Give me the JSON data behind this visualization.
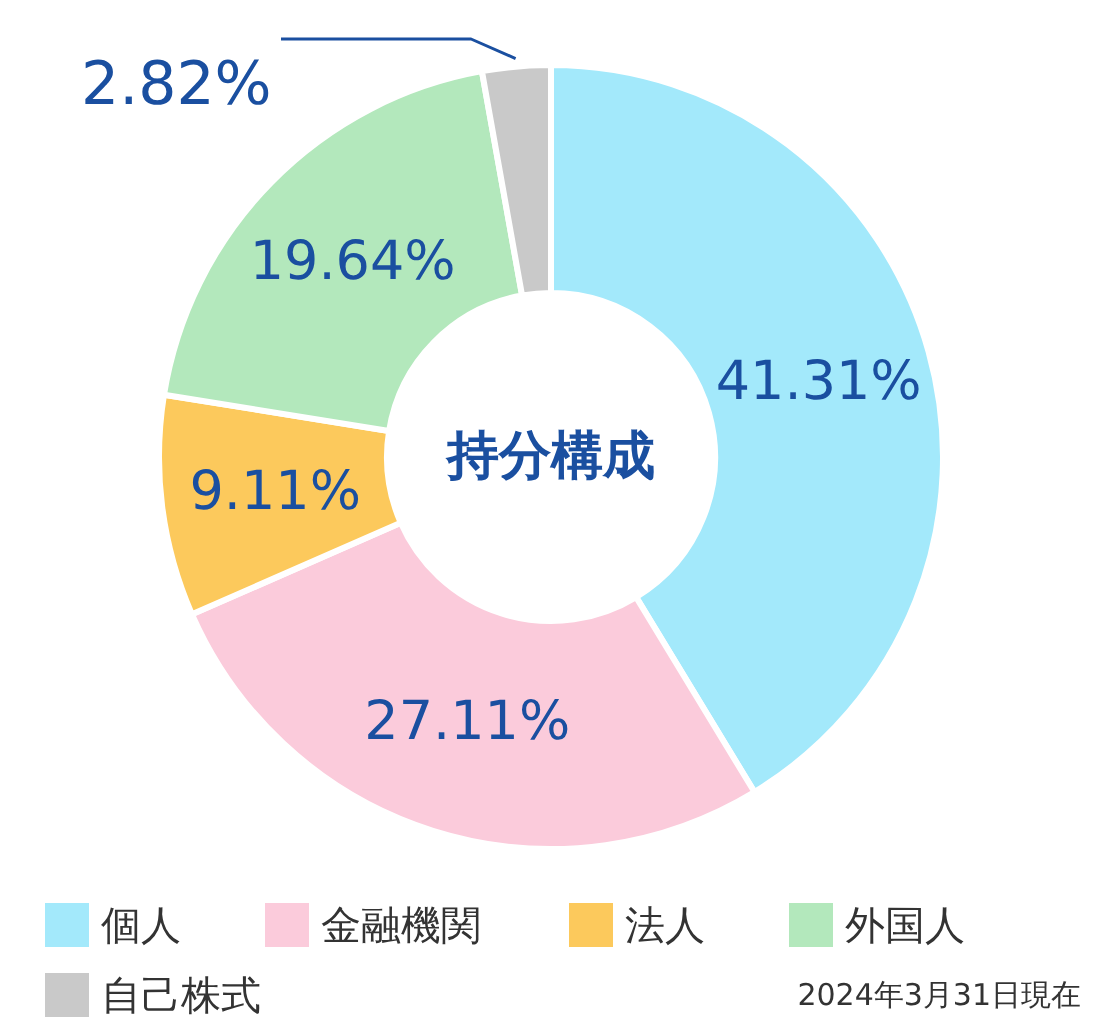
{
  "chart_data": {
    "type": "donut",
    "title": "持分構成",
    "categories": [
      "個人",
      "金融機関",
      "法人",
      "外国人",
      "自己株式"
    ],
    "values": [
      41.31,
      27.11,
      9.11,
      19.64,
      2.82
    ],
    "colors": [
      "#a3e9fb",
      "#fbcbdb",
      "#fcc95c",
      "#b3e8bc",
      "#c9c9c9"
    ],
    "value_labels": [
      "41.31%",
      "27.11%",
      "9.11%",
      "19.64%",
      "2.82%"
    ],
    "legend": "bottom",
    "annotations": [
      "2024年3月31日現在"
    ]
  }
}
